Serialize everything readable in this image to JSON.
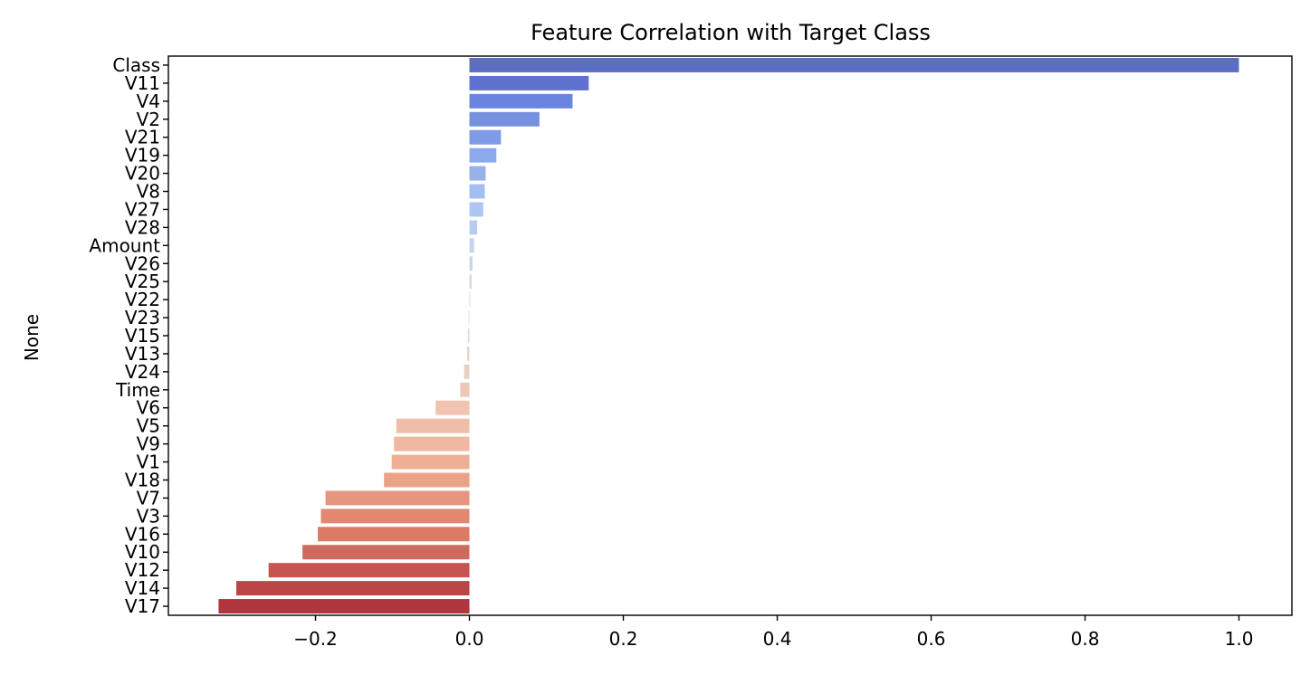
{
  "chart_data": {
    "type": "bar",
    "orientation": "horizontal",
    "title": "Feature Correlation with Target Class",
    "xlabel": "",
    "ylabel": "None",
    "xlim": [
      -0.3912,
      1.0688
    ],
    "xticks": [
      -0.2,
      0.0,
      0.2,
      0.4,
      0.6,
      0.8,
      1.0
    ],
    "xtick_labels": [
      "−0.2",
      "0.0",
      "0.2",
      "0.4",
      "0.6",
      "0.8",
      "1.0"
    ],
    "grid": false,
    "legend": "none",
    "palette": "coolwarm",
    "categories": [
      "Class",
      "V11",
      "V4",
      "V2",
      "V21",
      "V19",
      "V20",
      "V8",
      "V27",
      "V28",
      "Amount",
      "V26",
      "V25",
      "V22",
      "V23",
      "V15",
      "V13",
      "V24",
      "Time",
      "V6",
      "V5",
      "V9",
      "V1",
      "V18",
      "V7",
      "V3",
      "V16",
      "V10",
      "V12",
      "V14",
      "V17"
    ],
    "values": [
      1.0,
      0.155,
      0.134,
      0.091,
      0.041,
      0.035,
      0.021,
      0.02,
      0.018,
      0.01,
      0.006,
      0.004,
      0.003,
      0.001,
      -0.001,
      -0.002,
      -0.003,
      -0.007,
      -0.012,
      -0.044,
      -0.095,
      -0.098,
      -0.101,
      -0.111,
      -0.187,
      -0.193,
      -0.197,
      -0.217,
      -0.261,
      -0.303,
      -0.326
    ],
    "colors": [
      "#5b6ec1",
      "#5f72cd",
      "#6a85e0",
      "#7590dc",
      "#7f9ae6",
      "#8caaee",
      "#97b1ea",
      "#a3bef4",
      "#adc7f2",
      "#b6cdf0",
      "#c2d5ee",
      "#c8d6e9",
      "#d0dcea",
      "#dad9df",
      "#e0dad7",
      "#e3d9d4",
      "#e5d5cb",
      "#e8d1c2",
      "#ecc8b9",
      "#f1c4b1",
      "#efbda8",
      "#f0b7a1",
      "#eeaf95",
      "#eba387",
      "#e6967e",
      "#e28770",
      "#dc7a64",
      "#cd6c5d",
      "#c65551",
      "#bc4548",
      "#b0353e"
    ]
  }
}
